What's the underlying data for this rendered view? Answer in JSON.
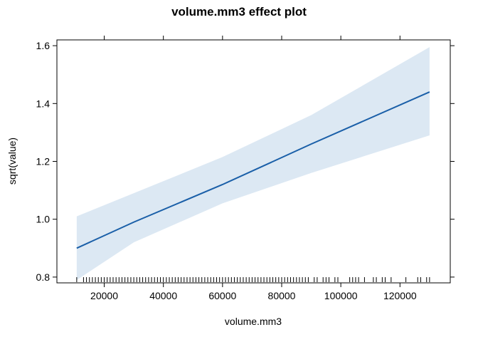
{
  "chart_data": {
    "type": "line",
    "title": "volume.mm3 effect plot",
    "xlabel": "volume.mm3",
    "ylabel": "sqrt(value)",
    "xlim": [
      4000,
      137000
    ],
    "ylim": [
      0.78,
      1.62
    ],
    "x_ticks": [
      20000,
      40000,
      60000,
      80000,
      100000,
      120000
    ],
    "x_tick_labels": [
      "20000",
      "40000",
      "60000",
      "80000",
      "100000",
      "120000"
    ],
    "y_ticks": [
      0.8,
      1.0,
      1.2,
      1.4,
      1.6
    ],
    "y_tick_labels": [
      "0.8",
      "1.0",
      "1.2",
      "1.4",
      "1.6"
    ],
    "grid": false,
    "colors": {
      "line": "#1a5fa8",
      "band": "#dce8f3",
      "frame": "#000000"
    },
    "series": [
      {
        "x": [
          10700,
          30000,
          60000,
          90000,
          130000
        ],
        "y": [
          0.9,
          0.99,
          1.12,
          1.26,
          1.44
        ]
      }
    ],
    "confidence_band": {
      "x": [
        10700,
        30000,
        60000,
        90000,
        130000
      ],
      "lower": [
        0.79,
        0.92,
        1.055,
        1.16,
        1.29
      ],
      "upper": [
        1.01,
        1.09,
        1.215,
        1.36,
        1.595
      ]
    },
    "rug_x": [
      10700,
      13000,
      14000,
      15000,
      16000,
      17000,
      18000,
      19000,
      20000,
      21000,
      22000,
      23000,
      24000,
      25000,
      26000,
      27000,
      28000,
      29000,
      30000,
      31000,
      32000,
      33000,
      34000,
      35000,
      36000,
      37000,
      38000,
      39000,
      40000,
      41000,
      42000,
      43000,
      44000,
      45000,
      46000,
      47000,
      48000,
      49000,
      50000,
      51000,
      52000,
      53000,
      54000,
      55000,
      56000,
      57000,
      58000,
      59000,
      60000,
      61000,
      62000,
      63000,
      64000,
      65000,
      66000,
      67000,
      68000,
      69000,
      70000,
      71000,
      72000,
      73000,
      74000,
      75000,
      76000,
      77000,
      78000,
      79000,
      80000,
      81000,
      82000,
      83000,
      84000,
      85000,
      86000,
      87000,
      88000,
      89000,
      91000,
      92000,
      94000,
      95000,
      96000,
      98000,
      99000,
      103000,
      104000,
      105000,
      106000,
      108000,
      111000,
      112000,
      114000,
      115000,
      117000,
      122000,
      126000,
      127000,
      129000,
      130000
    ]
  }
}
